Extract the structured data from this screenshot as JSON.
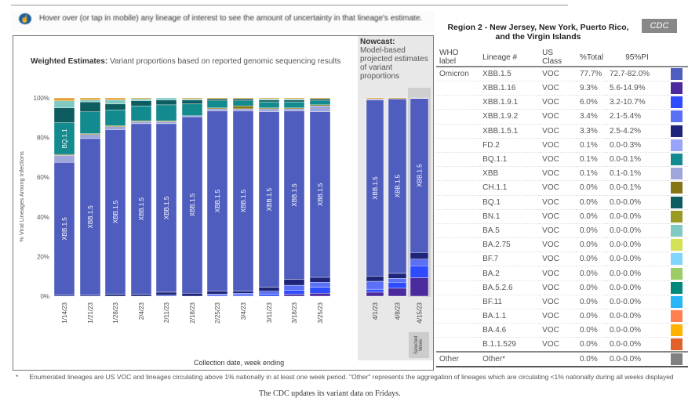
{
  "hint": "Hover over (or tap in mobile) any lineage of interest to see the amount of uncertainty in that lineage's estimate.",
  "weighted": {
    "bold": "Weighted Estimates:",
    "text": " Variant proportions based on reported genomic sequencing results"
  },
  "nowcast": {
    "bold": "Nowcast:",
    "text": "Model-based projected estimates of variant proportions"
  },
  "selected_week": "Selected Week",
  "region_title": "Region 2 - New Jersey, New York, Puerto Rico, and the Virgin Islands",
  "cdc_badge": "CDC",
  "table": {
    "headers": [
      "WHO label",
      "Lineage #",
      "US Class",
      "%Total",
      "95%PI"
    ],
    "rows": [
      {
        "who": "Omicron",
        "lineage": "XBB.1.5",
        "cls": "VOC",
        "total": "77.7%",
        "pi": "72.7-82.0%",
        "color": "#4F5DBE"
      },
      {
        "who": "",
        "lineage": "XBB.1.16",
        "cls": "VOC",
        "total": "9.3%",
        "pi": "5.6-14.9%",
        "color": "#4B2A9E"
      },
      {
        "who": "",
        "lineage": "XBB.1.9.1",
        "cls": "VOC",
        "total": "6.0%",
        "pi": "3.2-10.7%",
        "color": "#2E4BFF"
      },
      {
        "who": "",
        "lineage": "XBB.1.9.2",
        "cls": "VOC",
        "total": "3.4%",
        "pi": "2.1-5.4%",
        "color": "#5A70F5"
      },
      {
        "who": "",
        "lineage": "XBB.1.5.1",
        "cls": "VOC",
        "total": "3.3%",
        "pi": "2.5-4.2%",
        "color": "#1E2578"
      },
      {
        "who": "",
        "lineage": "FD.2",
        "cls": "VOC",
        "total": "0.1%",
        "pi": "0.0-0.3%",
        "color": "#97A4F8"
      },
      {
        "who": "",
        "lineage": "BQ.1.1",
        "cls": "VOC",
        "total": "0.1%",
        "pi": "0.0-0.1%",
        "color": "#138A8E"
      },
      {
        "who": "",
        "lineage": "XBB",
        "cls": "VOC",
        "total": "0.1%",
        "pi": "0.1-0.1%",
        "color": "#9FA6DA"
      },
      {
        "who": "",
        "lineage": "CH.1.1",
        "cls": "VOC",
        "total": "0.0%",
        "pi": "0.0-0.1%",
        "color": "#857515"
      },
      {
        "who": "",
        "lineage": "BQ.1",
        "cls": "VOC",
        "total": "0.0%",
        "pi": "0.0-0.0%",
        "color": "#0D5C60"
      },
      {
        "who": "",
        "lineage": "BN.1",
        "cls": "VOC",
        "total": "0.0%",
        "pi": "0.0-0.0%",
        "color": "#9A9A22"
      },
      {
        "who": "",
        "lineage": "BA.5",
        "cls": "VOC",
        "total": "0.0%",
        "pi": "0.0-0.0%",
        "color": "#7FCBC4"
      },
      {
        "who": "",
        "lineage": "BA.2.75",
        "cls": "VOC",
        "total": "0.0%",
        "pi": "0.0-0.0%",
        "color": "#D4E157"
      },
      {
        "who": "",
        "lineage": "BF.7",
        "cls": "VOC",
        "total": "0.0%",
        "pi": "0.0-0.0%",
        "color": "#81D4FA"
      },
      {
        "who": "",
        "lineage": "BA.2",
        "cls": "VOC",
        "total": "0.0%",
        "pi": "0.0-0.0%",
        "color": "#9CCC65"
      },
      {
        "who": "",
        "lineage": "BA.5.2.6",
        "cls": "VOC",
        "total": "0.0%",
        "pi": "0.0-0.0%",
        "color": "#00897B"
      },
      {
        "who": "",
        "lineage": "BF.11",
        "cls": "VOC",
        "total": "0.0%",
        "pi": "0.0-0.0%",
        "color": "#29B6F6"
      },
      {
        "who": "",
        "lineage": "BA.1.1",
        "cls": "VOC",
        "total": "0.0%",
        "pi": "0.0-0.0%",
        "color": "#FF7F50"
      },
      {
        "who": "",
        "lineage": "BA.4.6",
        "cls": "VOC",
        "total": "0.0%",
        "pi": "0.0-0.0%",
        "color": "#FFB300"
      },
      {
        "who": "",
        "lineage": "B.1.1.529",
        "cls": "VOC",
        "total": "0.0%",
        "pi": "0.0-0.0%",
        "color": "#E0622A"
      },
      {
        "who": "Other",
        "lineage": "Other*",
        "cls": "",
        "total": "0.0%",
        "pi": "0.0-0.0%",
        "color": "#808080"
      }
    ]
  },
  "footnote": {
    "star": "*",
    "text": "Enumerated lineages are US VOC and lineages circulating above 1% nationally in at least one week period. \"Other\" represents the aggregation of lineages which are circulating <1% nationally during all weeks displayed"
  },
  "caption": "The CDC updates its variant data on Fridays.",
  "chart_data": {
    "type": "bar",
    "stacked": true,
    "ylabel": "% Viral Lineages Among Infections",
    "xlabel": "Collection date, week ending",
    "ylim": [
      0,
      100
    ],
    "yticks": [
      "0%",
      "20%",
      "40%",
      "60%",
      "80%",
      "100%"
    ],
    "categories": [
      "1/14/23",
      "1/21/23",
      "1/28/23",
      "2/4/23",
      "2/11/23",
      "2/18/23",
      "2/25/23",
      "3/4/23",
      "3/11/23",
      "3/18/23",
      "3/25/23",
      "4/1/23",
      "4/8/23",
      "4/15/23"
    ],
    "nowcast_from": "4/1/23",
    "series": [
      {
        "name": "XBB.1.16",
        "color": "#4B2A9E",
        "values": [
          0,
          0,
          0,
          0,
          0,
          0,
          0,
          0,
          0,
          1,
          1.5,
          2,
          4,
          9.3
        ]
      },
      {
        "name": "XBB.1.9.1",
        "color": "#2E4BFF",
        "values": [
          0,
          0,
          0,
          0,
          0,
          0,
          0.5,
          0.5,
          1,
          2,
          3,
          1.5,
          3,
          6
        ]
      },
      {
        "name": "XBB.1.9.2",
        "color": "#5A70F5",
        "values": [
          0,
          0,
          0,
          0,
          0.5,
          0,
          0.5,
          1,
          1.5,
          2.5,
          2.5,
          4,
          2,
          3.4
        ]
      },
      {
        "name": "XBB.1.5.1",
        "color": "#1E2578",
        "values": [
          0.5,
          0.5,
          1,
          1,
          1.5,
          1.5,
          1.5,
          1,
          2,
          3,
          2.5,
          2.5,
          2.5,
          3.3
        ]
      },
      {
        "name": "XBB.1.5",
        "color": "#4F5DBE",
        "values": [
          67,
          79,
          83,
          86,
          85,
          89,
          91,
          91,
          88.5,
          85,
          83.5,
          89,
          88,
          77.7
        ]
      },
      {
        "name": "XBB",
        "color": "#9FA6DA",
        "values": [
          3.5,
          2,
          1.5,
          1,
          1,
          0.5,
          1,
          1,
          1.5,
          1,
          3,
          0.5,
          0,
          0.1
        ]
      },
      {
        "name": "CH.1.1",
        "color": "#857515",
        "values": [
          0.5,
          0.5,
          0.5,
          0.5,
          0.5,
          0,
          0.5,
          1.5,
          0.5,
          0.5,
          0.5,
          0,
          0,
          0
        ]
      },
      {
        "name": "BQ.1.1",
        "color": "#138A8E",
        "values": [
          16,
          11,
          8,
          7.5,
          8,
          6,
          3.5,
          2.5,
          3,
          3,
          2,
          0,
          0,
          0.1
        ]
      },
      {
        "name": "BQ.1",
        "color": "#0D5C60",
        "values": [
          7.5,
          5,
          3,
          2.5,
          2.5,
          2,
          1,
          1,
          1,
          1,
          1,
          0,
          0,
          0
        ]
      },
      {
        "name": "BA.5",
        "color": "#7FCBC4",
        "values": [
          3.5,
          1,
          2,
          1,
          1,
          0.5,
          0,
          0,
          0.5,
          0.5,
          0,
          0,
          0,
          0
        ]
      },
      {
        "name": "Other",
        "color": "#E0A030",
        "values": [
          1.5,
          1,
          1,
          0.5,
          0,
          0.5,
          0.5,
          0.5,
          0.5,
          0.5,
          0.5,
          0.5,
          0.5,
          0.1
        ]
      }
    ],
    "bar_labels": [
      {
        "series": "BQ.1.1",
        "bar": "1/14/23",
        "text": "BQ.1.1"
      },
      {
        "series": "XBB.1.5",
        "text": "XBB.1.5"
      }
    ]
  }
}
